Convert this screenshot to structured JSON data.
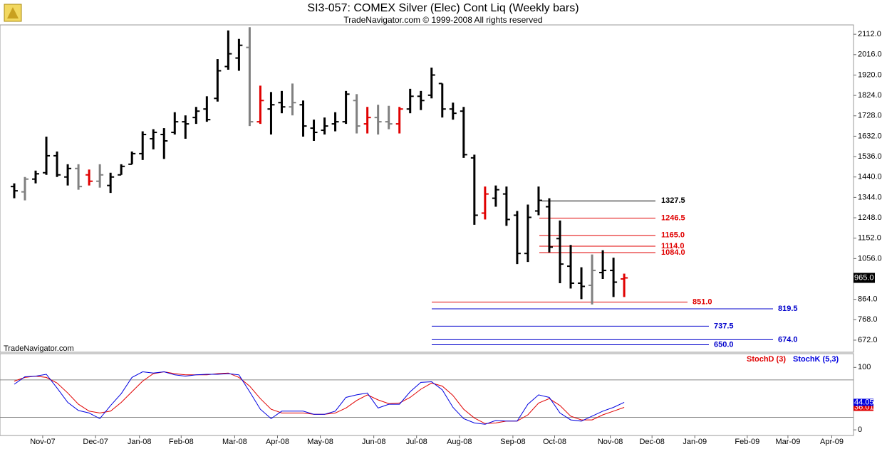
{
  "chart_data": [
    {
      "type": "ohlc",
      "title": "SI3-057:  COMEX Silver (Elec) Cont Liq  (Weekly bars)",
      "subtitle": "TradeNavigator.com © 1999-2008 All rights reserved",
      "watermark": "TradeNavigator.com",
      "open": [
        1395,
        1370,
        1430,
        1460,
        1540,
        1440,
        1480,
        1450,
        1420,
        1400,
        1450,
        1500,
        1550,
        1620,
        1640,
        1650,
        1700,
        1720,
        1760,
        1810,
        1960,
        2000,
        2050,
        1700,
        1760,
        1790,
        1770,
        1780,
        1670,
        1660,
        1690,
        1700,
        1800,
        1690,
        1720,
        1700,
        1690,
        1760,
        1820,
        1825,
        1880,
        1760,
        1750,
        1530,
        1270,
        1340,
        1360,
        1260,
        1080,
        1280,
        1300,
        1150,
        1020,
        940,
        930,
        990,
        1000,
        960
      ],
      "high": [
        1410,
        1440,
        1470,
        1630,
        1560,
        1500,
        1500,
        1475,
        1500,
        1460,
        1500,
        1560,
        1655,
        1665,
        1670,
        1745,
        1730,
        1770,
        1820,
        1995,
        2130,
        2090,
        2145,
        1870,
        1840,
        1845,
        1880,
        1800,
        1710,
        1720,
        1745,
        1845,
        1830,
        1770,
        1780,
        1775,
        1770,
        1855,
        1845,
        1955,
        1880,
        1790,
        1770,
        1545,
        1395,
        1400,
        1395,
        1280,
        1310,
        1395,
        1340,
        1235,
        1120,
        1015,
        1075,
        1095,
        1060,
        985
      ],
      "low": [
        1340,
        1330,
        1410,
        1450,
        1440,
        1400,
        1380,
        1400,
        1390,
        1365,
        1450,
        1500,
        1520,
        1570,
        1525,
        1640,
        1620,
        1690,
        1700,
        1795,
        1945,
        1940,
        1680,
        1690,
        1640,
        1740,
        1730,
        1630,
        1610,
        1640,
        1655,
        1690,
        1645,
        1645,
        1640,
        1665,
        1645,
        1740,
        1755,
        1810,
        1720,
        1710,
        1530,
        1215,
        1240,
        1300,
        1210,
        1030,
        1040,
        1260,
        1085,
        940,
        915,
        865,
        840,
        960,
        875,
        875
      ],
      "close": [
        1375,
        1430,
        1455,
        1540,
        1450,
        1480,
        1395,
        1420,
        1450,
        1440,
        1490,
        1550,
        1640,
        1650,
        1610,
        1700,
        1690,
        1750,
        1710,
        1940,
        2020,
        2060,
        1700,
        1800,
        1780,
        1770,
        1790,
        1680,
        1650,
        1680,
        1700,
        1830,
        1680,
        1720,
        1700,
        1690,
        1760,
        1820,
        1800,
        1920,
        1760,
        1740,
        1545,
        1260,
        1360,
        1380,
        1240,
        1080,
        1250,
        1330,
        1110,
        1030,
        940,
        925,
        1000,
        1000,
        945,
        965
      ],
      "colors": [
        "black",
        "gray",
        "black",
        "black",
        "black",
        "black",
        "gray",
        "red",
        "gray",
        "black",
        "black",
        "black",
        "black",
        "black",
        "black",
        "black",
        "black",
        "black",
        "black",
        "black",
        "black",
        "black",
        "gray",
        "red",
        "black",
        "black",
        "gray",
        "black",
        "black",
        "black",
        "black",
        "black",
        "gray",
        "red",
        "gray",
        "gray",
        "red",
        "black",
        "black",
        "black",
        "black",
        "black",
        "black",
        "black",
        "red",
        "black",
        "black",
        "black",
        "black",
        "black",
        "black",
        "black",
        "black",
        "black",
        "gray",
        "black",
        "black",
        "red"
      ],
      "last_price": {
        "value": 965,
        "label": "965.0"
      },
      "levels": [
        {
          "value": 1327.5,
          "color": "#000000"
        },
        {
          "value": 1246.5,
          "color": "#e00000"
        },
        {
          "value": 1165,
          "label": "1165.0",
          "color": "#e00000"
        },
        {
          "value": 1114,
          "label": "1114.0",
          "color": "#e00000"
        },
        {
          "value": 1084,
          "label": "1084.0",
          "color": "#e00000"
        },
        {
          "value": 851,
          "label": "851.0",
          "color": "#e00000"
        },
        {
          "value": 819.5,
          "color": "#0000cc"
        },
        {
          "value": 737.5,
          "color": "#0000cc"
        },
        {
          "value": 674,
          "label": "674.0",
          "color": "#0000cc"
        },
        {
          "value": 650,
          "label": "650.0",
          "color": "#0000cc"
        }
      ],
      "xlim": [
        -1.33,
        78.43
      ],
      "ylim": [
        615,
        2156
      ],
      "yticks": [
        {
          "value": 2112,
          "label": "2112.0"
        },
        {
          "value": 2016,
          "label": "2016.0"
        },
        {
          "value": 1920,
          "label": "1920.0"
        },
        {
          "value": 1824,
          "label": "1824.0"
        },
        {
          "value": 1728,
          "label": "1728.0"
        },
        {
          "value": 1632,
          "label": "1632.0"
        },
        {
          "value": 1536,
          "label": "1536.0"
        },
        {
          "value": 1440,
          "label": "1440.0"
        },
        {
          "value": 1344,
          "label": "1344.0"
        },
        {
          "value": 1248,
          "label": "1248.0"
        },
        {
          "value": 1152,
          "label": "1152.0"
        },
        {
          "value": 1056,
          "label": "1056.0"
        },
        {
          "value": 864,
          "label": "864.0"
        },
        {
          "value": 768,
          "label": "768.0"
        },
        {
          "value": 672,
          "label": "672.0"
        }
      ]
    },
    {
      "type": "line",
      "series": [
        {
          "name": "StochD (3)",
          "color": "#e00000",
          "values": [
            78,
            84,
            86,
            84,
            75,
            59,
            41,
            30,
            27,
            30,
            44,
            61,
            78,
            90,
            93,
            90,
            88,
            88,
            88,
            90,
            91,
            84,
            70,
            50,
            33,
            27,
            27,
            27,
            25,
            25,
            27,
            35,
            47,
            56,
            48,
            42,
            43,
            52,
            65,
            75,
            70,
            55,
            33,
            19,
            10,
            11,
            14,
            14,
            24,
            43,
            50,
            39,
            22,
            16,
            16,
            24,
            30,
            36.01
          ]
        },
        {
          "name": "StochK (5,3)",
          "color": "#0000e0",
          "values": [
            73,
            85,
            86,
            89,
            67,
            44,
            31,
            27,
            18,
            39,
            58,
            84,
            93,
            91,
            93,
            88,
            86,
            88,
            89,
            89,
            90,
            88,
            61,
            33,
            18,
            30,
            30,
            30,
            25,
            25,
            30,
            52,
            56,
            59,
            35,
            41,
            41,
            61,
            76,
            77,
            64,
            36,
            18,
            11,
            9,
            15,
            14,
            14,
            41,
            56,
            52,
            27,
            16,
            14,
            22,
            30,
            36,
            44.05
          ]
        }
      ],
      "hlines": [
        20,
        80
      ],
      "xlim": [
        -1.33,
        78.43
      ],
      "ylim": [
        -9,
        122
      ],
      "yticks": [
        0,
        100
      ],
      "xticks": [
        {
          "value": 2.66,
          "label": "Nov-07"
        },
        {
          "value": 7.6,
          "label": "Dec-07"
        },
        {
          "value": 11.7,
          "label": "Jan-08"
        },
        {
          "value": 15.6,
          "label": "Feb-08"
        },
        {
          "value": 20.6,
          "label": "Mar-08"
        },
        {
          "value": 24.6,
          "label": "Apr-08"
        },
        {
          "value": 28.6,
          "label": "May-08"
        },
        {
          "value": 33.6,
          "label": "Jun-08"
        },
        {
          "value": 37.6,
          "label": "Jul-08"
        },
        {
          "value": 41.6,
          "label": "Aug-08"
        },
        {
          "value": 46.6,
          "label": "Sep-08"
        },
        {
          "value": 50.5,
          "label": "Oct-08"
        },
        {
          "value": 55.7,
          "label": "Nov-08"
        },
        {
          "value": 59.6,
          "label": "Dec-08"
        },
        {
          "value": 63.6,
          "label": "Jan-09"
        },
        {
          "value": 68.5,
          "label": "Feb-09"
        },
        {
          "value": 72.3,
          "label": "Mar-09"
        },
        {
          "value": 76.4,
          "label": "Apr-09"
        }
      ]
    }
  ]
}
